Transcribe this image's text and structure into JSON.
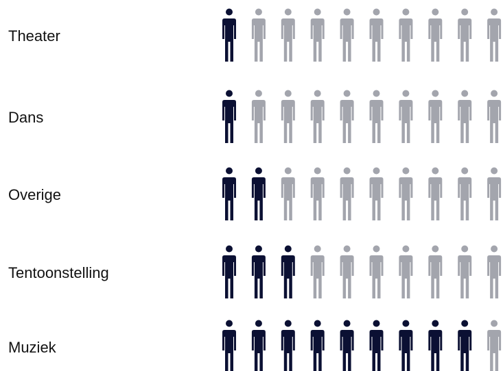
{
  "chart_data": {
    "type": "pictogram",
    "icon": "person-icon",
    "icons_per_row": 10,
    "categories": [
      "Theater",
      "Dans",
      "Overige",
      "Tentoonstelling",
      "Muziek"
    ],
    "values": [
      1,
      1,
      2,
      3,
      9
    ],
    "colors": {
      "filled": "#0b1033",
      "empty": "#a3a5ad"
    }
  }
}
